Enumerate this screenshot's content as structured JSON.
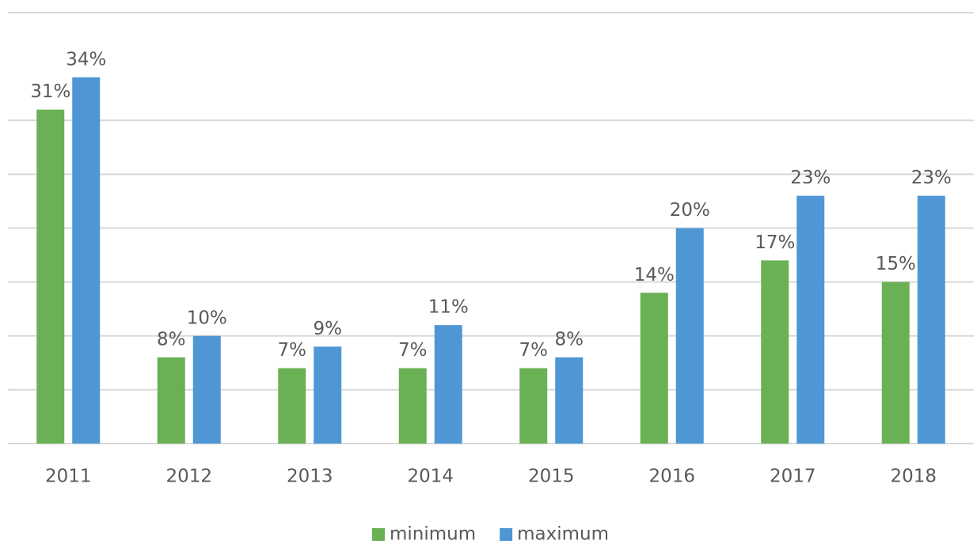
{
  "chart_data": {
    "type": "bar",
    "categories": [
      "2011",
      "2012",
      "2013",
      "2014",
      "2015",
      "2016",
      "2017",
      "2018"
    ],
    "series": [
      {
        "name": "minimum",
        "color": "#6ab155",
        "values": [
          31,
          8,
          7,
          7,
          7,
          14,
          17,
          15
        ],
        "value_labels": [
          "31%",
          "8%",
          "7%",
          "7%",
          "7%",
          "14%",
          "17%",
          "15%"
        ]
      },
      {
        "name": "maximum",
        "color": "#4e97d4",
        "values": [
          34,
          10,
          9,
          11,
          8,
          20,
          23,
          23
        ],
        "value_labels": [
          "34%",
          "10%",
          "9%",
          "11%",
          "8%",
          "20%",
          "23%",
          "23%"
        ]
      }
    ],
    "ylim": [
      0,
      40
    ],
    "yticks": [
      0,
      5,
      10,
      15,
      20,
      25,
      30,
      40
    ],
    "grid": true,
    "legend": "bottom"
  }
}
